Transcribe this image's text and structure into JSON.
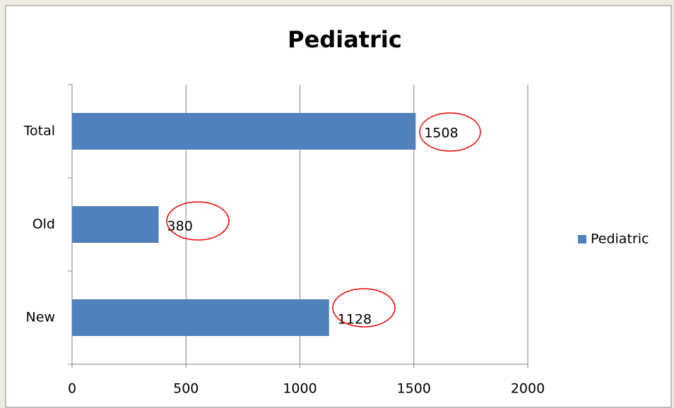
{
  "chart_data": {
    "type": "bar",
    "orientation": "horizontal",
    "title": "Pediatric",
    "categories": [
      "New",
      "Old",
      "Total"
    ],
    "series": [
      {
        "name": "Pediatric",
        "color": "#4f81bd",
        "values": [
          1128,
          380,
          1508
        ]
      }
    ],
    "xlim": [
      0,
      2000
    ],
    "xticks": [
      0,
      500,
      1000,
      1500,
      2000
    ],
    "grid": true,
    "legend": "right"
  }
}
